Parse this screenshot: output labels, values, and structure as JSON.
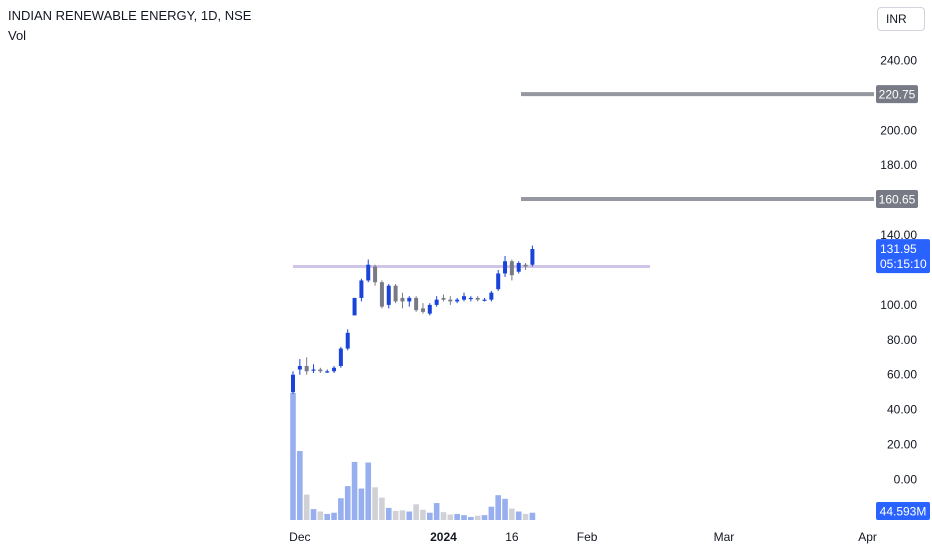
{
  "header": {
    "title": "INDIAN RENEWABLE ENERGY, 1D, NSE",
    "volume_label": "Vol",
    "currency": "INR"
  },
  "chart_data": {
    "type": "candlestick",
    "symbol": "INDIAN RENEWABLE ENERGY",
    "interval": "1D",
    "exchange": "NSE",
    "price_axis": {
      "ticks": [
        "240.00",
        "200.00",
        "180.00",
        "140.00",
        "100.00",
        "80.00",
        "60.00",
        "40.00",
        "20.00",
        "0.00"
      ],
      "range": [
        -30,
        250
      ]
    },
    "time_axis": {
      "labels": [
        {
          "label": "Dec",
          "index": 1
        },
        {
          "label": "2024",
          "index": 22
        },
        {
          "label": "16",
          "index": 32
        },
        {
          "label": "Feb",
          "index": 43
        },
        {
          "label": "Mar",
          "index": 63
        },
        {
          "label": "Apr",
          "index": 84
        }
      ]
    },
    "candles": [
      {
        "o": 50,
        "h": 62,
        "l": 49,
        "c": 60
      },
      {
        "o": 63,
        "h": 69,
        "l": 60,
        "c": 65
      },
      {
        "o": 65,
        "h": 70,
        "l": 60,
        "c": 62
      },
      {
        "o": 63,
        "h": 66,
        "l": 61,
        "c": 63
      },
      {
        "o": 63,
        "h": 64,
        "l": 61,
        "c": 62
      },
      {
        "o": 62,
        "h": 63,
        "l": 61,
        "c": 62
      },
      {
        "o": 62,
        "h": 65,
        "l": 61,
        "c": 64
      },
      {
        "o": 65,
        "h": 76,
        "l": 64,
        "c": 75
      },
      {
        "o": 75,
        "h": 86,
        "l": 74,
        "c": 84
      },
      {
        "o": 94,
        "h": 104,
        "l": 94,
        "c": 104
      },
      {
        "o": 104,
        "h": 115,
        "l": 102,
        "c": 114
      },
      {
        "o": 114,
        "h": 126,
        "l": 113,
        "c": 123
      },
      {
        "o": 122,
        "h": 123,
        "l": 111,
        "c": 113
      },
      {
        "o": 113,
        "h": 114,
        "l": 98,
        "c": 99
      },
      {
        "o": 100,
        "h": 112,
        "l": 98,
        "c": 111
      },
      {
        "o": 111,
        "h": 112,
        "l": 101,
        "c": 102
      },
      {
        "o": 104,
        "h": 107,
        "l": 98,
        "c": 102
      },
      {
        "o": 102,
        "h": 105,
        "l": 99,
        "c": 104
      },
      {
        "o": 104,
        "h": 105,
        "l": 96,
        "c": 97
      },
      {
        "o": 98,
        "h": 101,
        "l": 95,
        "c": 96
      },
      {
        "o": 95,
        "h": 101,
        "l": 94,
        "c": 100
      },
      {
        "o": 100,
        "h": 105,
        "l": 99,
        "c": 103
      },
      {
        "o": 104,
        "h": 106,
        "l": 102,
        "c": 103
      },
      {
        "o": 103,
        "h": 105,
        "l": 100,
        "c": 102
      },
      {
        "o": 102,
        "h": 104,
        "l": 101,
        "c": 103
      },
      {
        "o": 103,
        "h": 107,
        "l": 102,
        "c": 105
      },
      {
        "o": 104,
        "h": 105,
        "l": 102,
        "c": 104
      },
      {
        "o": 104,
        "h": 105,
        "l": 102,
        "c": 103
      },
      {
        "o": 103,
        "h": 104,
        "l": 102,
        "c": 103
      },
      {
        "o": 103,
        "h": 108,
        "l": 102,
        "c": 107
      },
      {
        "o": 109,
        "h": 120,
        "l": 108,
        "c": 118
      },
      {
        "o": 118,
        "h": 128,
        "l": 116,
        "c": 125
      },
      {
        "o": 125,
        "h": 126,
        "l": 114,
        "c": 117
      },
      {
        "o": 119,
        "h": 125,
        "l": 118,
        "c": 124
      },
      {
        "o": 123,
        "h": 124,
        "l": 120,
        "c": 122
      },
      {
        "o": 123,
        "h": 134,
        "l": 122,
        "c": 132
      }
    ],
    "volume": [
      210,
      114,
      42,
      18,
      14,
      10,
      12,
      36,
      56,
      96,
      52,
      95,
      54,
      37,
      20,
      15,
      16,
      14,
      26,
      17,
      12,
      28,
      13,
      9,
      10,
      8,
      5,
      7,
      8,
      22,
      41,
      35,
      19,
      14,
      10,
      12
    ],
    "horizontal_levels": [
      {
        "price": 220.75,
        "label": "220.75",
        "color": "#9598a1"
      },
      {
        "price": 160.65,
        "label": "160.65",
        "color": "#9598a1"
      },
      {
        "price": 122,
        "color": "#d1c4e9"
      }
    ],
    "last_price": {
      "value": 131.95,
      "label": "131.95",
      "countdown": "05:15:10"
    },
    "last_volume": {
      "label": "44.593M"
    },
    "colors": {
      "up": "#1943d9",
      "down": "#787b86",
      "volume_up": "#97aeef",
      "volume_down": "#cfd1d6",
      "axis_text": "#131722",
      "level_line": "#9598a1",
      "resistance_line": "#d1c4e9",
      "badge_blue": "#2962ff",
      "badge_gray": "#787b86"
    }
  }
}
